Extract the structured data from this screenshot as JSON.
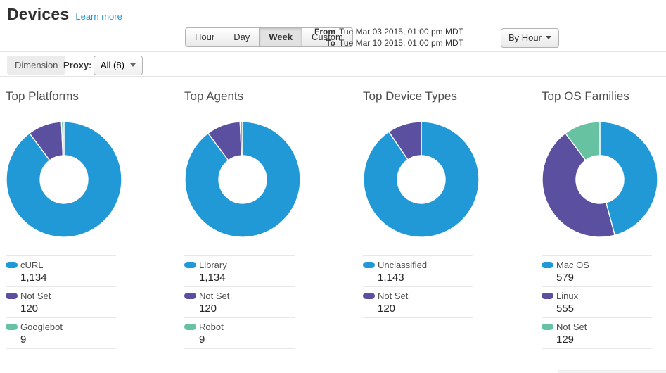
{
  "header": {
    "title": "Devices",
    "learn_more_link": "Learn more"
  },
  "toolbar": {
    "range_tabs": [
      {
        "label": "Hour",
        "active": false
      },
      {
        "label": "Day",
        "active": false
      },
      {
        "label": "Week",
        "active": true
      },
      {
        "label": "Custom",
        "active": false
      }
    ],
    "date_range": {
      "from_label": "From",
      "from_value": "Tue Mar 03 2015, 01:00 pm MDT",
      "to_label": "To",
      "to_value": "Tue Mar 10 2015, 01:00 pm MDT"
    },
    "granularity_dropdown": {
      "label": "By Hour"
    }
  },
  "filter_bar": {
    "dimension_label": "Dimension",
    "proxy_label": "Proxy:",
    "proxy_dropdown": {
      "selected": "All (8)"
    }
  },
  "colors": {
    "slice_blue": "#2199d6",
    "slice_purple": "#5b4fa0",
    "slice_green": "#66c2a0",
    "link_blue": "#2196d3"
  },
  "chart_data": [
    {
      "type": "pie",
      "title": "Top Platforms",
      "donut": true,
      "legend_position": "bottom",
      "labels": [
        "cURL",
        "Not Set",
        "Googlebot"
      ],
      "values": [
        1134,
        120,
        9
      ],
      "display_values": [
        "1,134",
        "120",
        "9"
      ],
      "slice_colors": [
        "#2199d6",
        "#5b4fa0",
        "#66c2a0"
      ]
    },
    {
      "type": "pie",
      "title": "Top Agents",
      "donut": true,
      "legend_position": "bottom",
      "labels": [
        "Library",
        "Not Set",
        "Robot"
      ],
      "values": [
        1134,
        120,
        9
      ],
      "display_values": [
        "1,134",
        "120",
        "9"
      ],
      "slice_colors": [
        "#2199d6",
        "#5b4fa0",
        "#66c2a0"
      ]
    },
    {
      "type": "pie",
      "title": "Top Device Types",
      "donut": true,
      "legend_position": "bottom",
      "labels": [
        "Unclassified",
        "Not Set"
      ],
      "values": [
        1143,
        120
      ],
      "display_values": [
        "1,143",
        "120"
      ],
      "slice_colors": [
        "#2199d6",
        "#5b4fa0"
      ]
    },
    {
      "type": "pie",
      "title": "Top OS Families",
      "donut": true,
      "legend_position": "bottom",
      "labels": [
        "Mac OS",
        "Linux",
        "Not Set"
      ],
      "values": [
        579,
        555,
        129
      ],
      "display_values": [
        "579",
        "555",
        "129"
      ],
      "slice_colors": [
        "#2199d6",
        "#5b4fa0",
        "#66c2a0"
      ]
    }
  ]
}
